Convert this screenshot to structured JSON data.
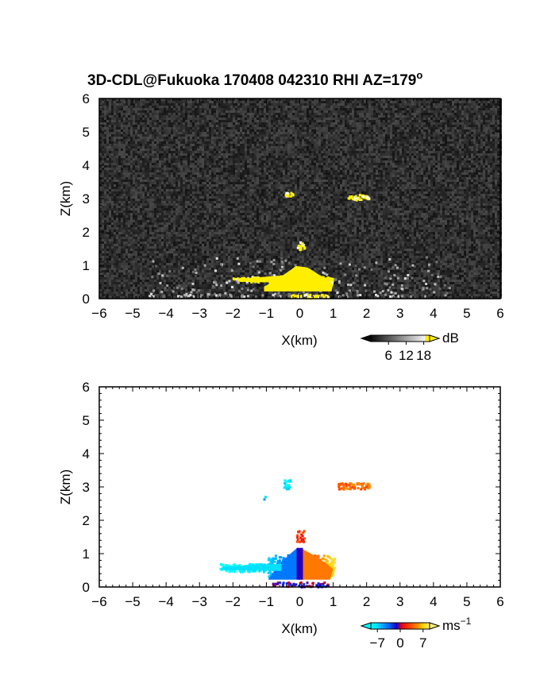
{
  "title": "3D-CDL@Fukuoka 170408 042310 RHI AZ=179",
  "title_sup": "o",
  "panels": [
    {
      "name": "reflectivity",
      "ylabel": "Z(km)",
      "xlabel": "X(km)",
      "colorbar": {
        "unit": "dB",
        "ticks": [
          "6",
          "12",
          "18"
        ],
        "tick_values": [
          6,
          12,
          18
        ],
        "range": [
          0,
          20
        ]
      }
    },
    {
      "name": "velocity",
      "ylabel": "Z(km)",
      "xlabel": "X(km)",
      "colorbar": {
        "unit": "ms",
        "unit_sup": "−1",
        "ticks": [
          "−7",
          "0",
          "7"
        ],
        "tick_values": [
          -7,
          0,
          7
        ],
        "range": [
          -9,
          9
        ]
      }
    }
  ],
  "chart_data": [
    {
      "type": "heatmap",
      "title": "3D-CDL@Fukuoka 170408 042310 RHI AZ=179°",
      "xlabel": "X(km)",
      "ylabel": "Z(km)",
      "xlim": [
        -6,
        6
      ],
      "ylim": [
        0,
        6
      ],
      "x_ticks": [
        -6,
        -5,
        -4,
        -3,
        -2,
        -1,
        0,
        1,
        2,
        3,
        4,
        5,
        6
      ],
      "y_ticks": [
        0,
        1,
        2,
        3,
        4,
        5,
        6
      ],
      "colorbar_unit": "dB",
      "colorbar_ticks": [
        6,
        12,
        18
      ],
      "background": "noise, gray scale",
      "echo_features": [
        {
          "x": -0.35,
          "z": 3.15,
          "value_db": 20
        },
        {
          "x": 1.75,
          "z": 3.05,
          "value_db": 20
        },
        {
          "x": 0.0,
          "z": 1.6,
          "value_db": 20
        },
        {
          "x": 0.0,
          "z": 0.55,
          "value_db": 20
        },
        {
          "x": -1.2,
          "z": 0.6,
          "value_db": 20
        },
        {
          "x": 0.3,
          "z": 0.1,
          "value_db": 20
        }
      ]
    },
    {
      "type": "heatmap",
      "xlabel": "X(km)",
      "ylabel": "Z(km)",
      "xlim": [
        -6,
        6
      ],
      "ylim": [
        0,
        6
      ],
      "x_ticks": [
        -6,
        -5,
        -4,
        -3,
        -2,
        -1,
        0,
        1,
        2,
        3,
        4,
        5,
        6
      ],
      "y_ticks": [
        0,
        1,
        2,
        3,
        4,
        5,
        6
      ],
      "colorbar_unit": "ms^-1",
      "colorbar_ticks": [
        -7,
        0,
        7
      ],
      "velocity_features": [
        {
          "x": -0.4,
          "z": 3.1,
          "value_ms": -8
        },
        {
          "x": 1.6,
          "z": 3.05,
          "value_ms": 4
        },
        {
          "x": -1.1,
          "z": 2.7,
          "value_ms": -6
        },
        {
          "x": 0.0,
          "z": 1.55,
          "value_ms": 2
        },
        {
          "x": -1.5,
          "z": 0.6,
          "value_ms": -6
        },
        {
          "x": -0.4,
          "z": 0.65,
          "value_ms": -4
        },
        {
          "x": 0.5,
          "z": 0.65,
          "value_ms": 6
        },
        {
          "x": 0.0,
          "z": 0.1,
          "value_ms": -1
        }
      ]
    }
  ],
  "colors": {
    "echo": "#ffee00",
    "noise_bg": "#2a2a2a",
    "vel_neg_far": "#00e5ff",
    "vel_neg": "#0058ff",
    "vel_zero": "#1400c8",
    "vel_pos": "#ff2800",
    "vel_pos_far": "#ffd800"
  }
}
